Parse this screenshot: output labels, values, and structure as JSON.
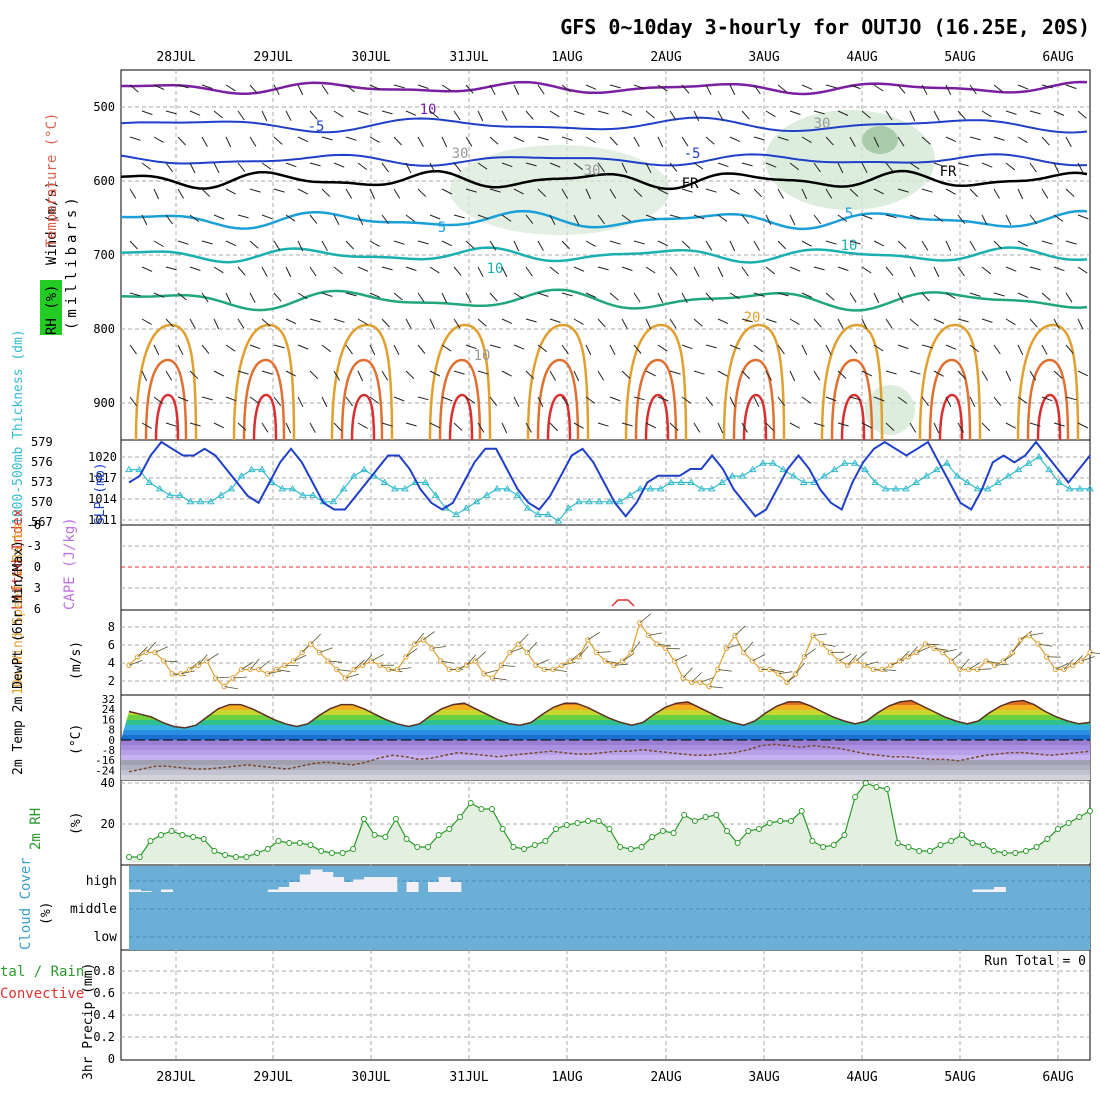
{
  "title": "GFS 0~10day 3-hourly for OUTJO (16.25E, 20S)",
  "dates": [
    "28JUL",
    "29JUL",
    "30JUL",
    "31JUL",
    "1AUG",
    "2AUG",
    "3AUG",
    "4AUG",
    "5AUG",
    "6AUG"
  ],
  "panels": {
    "upper": {
      "label_wind": "Wind (m/s)",
      "label_temp": "Temperature (°C)",
      "label_rh": "RH (%)",
      "label_mb": "(millibars)",
      "yticks": [
        "500",
        "600",
        "700",
        "800",
        "900"
      ],
      "contour_labels": [
        "10",
        "-5",
        "-5",
        "5",
        "5",
        "10",
        "10",
        "20",
        "FR",
        "FR",
        "10",
        "30",
        "30",
        "30"
      ]
    },
    "slp": {
      "label_thick": "1000-500mb Thickness (dm)",
      "label_slp": "SLP (mb)",
      "yticks_left": [
        "579",
        "576",
        "573",
        "570",
        "567"
      ],
      "yticks_right": [
        "1020",
        "1017",
        "1014",
        "1011"
      ]
    },
    "cape": {
      "label_li": "Lifted Index",
      "label_cape": "CAPE (J/kg)",
      "yticks": [
        "-6",
        "-3",
        "0",
        "3",
        "6"
      ]
    },
    "wind10": {
      "label": "10m Wind Speed & Barbs",
      "unit": "(m/s)",
      "yticks": [
        "8",
        "6",
        "4",
        "2"
      ]
    },
    "temp2m": {
      "label": "2m Temp 2m DewPt (6hr Min/Max)",
      "unit": "(°C)",
      "yticks": [
        "32",
        "24",
        "16",
        "8",
        "0",
        "-8",
        "-16",
        "-24"
      ]
    },
    "rh2m": {
      "label": "2m RH",
      "unit": "(%)",
      "yticks": [
        "40",
        "20"
      ]
    },
    "cloud": {
      "label": "Cloud Cover",
      "unit": "(%)",
      "levels": [
        "high",
        "middle",
        "low"
      ]
    },
    "precip": {
      "label_a": "tal / Rain",
      "label_b": "Convective",
      "label_c": "3hr Precip (mm)",
      "run_total": "Run Total = 0",
      "yticks": [
        "0.8",
        "0.6",
        "0.4",
        "0.2",
        "0"
      ]
    }
  },
  "colors": {
    "slp": "#1f3fc8",
    "thickness": "#33bbcc",
    "wind10": "#e0a030",
    "rh2m": "#2a9a2a",
    "cloud": "#6baed6",
    "li": "#e03030",
    "cape": "#c070e0"
  },
  "chart_data": [
    {
      "type": "line",
      "name": "SLP (mb)",
      "x_range": [
        "27JUL 12Z",
        "6AUG 06Z"
      ],
      "ylim": [
        1010,
        1022
      ],
      "values": [
        1016,
        1017,
        1020,
        1022,
        1021,
        1020,
        1020,
        1021,
        1020,
        1018,
        1016,
        1014,
        1013,
        1016,
        1019,
        1021,
        1019,
        1016,
        1013,
        1012,
        1012,
        1014,
        1016,
        1018,
        1020,
        1020,
        1018,
        1015,
        1013,
        1012,
        1013,
        1016,
        1019,
        1021,
        1021,
        1018,
        1015,
        1013,
        1012,
        1014,
        1017,
        1020,
        1021,
        1019,
        1016,
        1013,
        1011,
        1013,
        1016,
        1017,
        1017,
        1017,
        1018,
        1018,
        1020,
        1018,
        1015,
        1013,
        1011,
        1012,
        1015,
        1018,
        1020,
        1018,
        1015,
        1013,
        1012,
        1016,
        1019,
        1021,
        1022,
        1021,
        1020,
        1021,
        1022,
        1019,
        1016,
        1013,
        1012,
        1015,
        1019,
        1020,
        1019,
        1020,
        1022,
        1020,
        1018,
        1016,
        1018,
        1020
      ]
    },
    {
      "type": "line",
      "name": "1000-500mb Thickness (dm)",
      "ylim": [
        567,
        579
      ],
      "values": [
        575,
        575,
        573,
        572,
        571,
        571,
        570,
        570,
        570,
        571,
        572,
        574,
        575,
        575,
        573,
        572,
        572,
        571,
        571,
        570,
        570,
        572,
        574,
        575,
        574,
        573,
        572,
        572,
        573,
        573,
        571,
        569,
        568,
        569,
        570,
        571,
        572,
        572,
        571,
        569,
        568,
        568,
        567,
        569,
        570,
        570,
        570,
        570,
        570,
        571,
        572,
        572,
        572,
        573,
        573,
        573,
        572,
        572,
        573,
        574,
        574,
        575,
        576,
        576,
        575,
        574,
        573,
        573,
        574,
        575,
        576,
        576,
        575,
        573,
        572,
        572,
        572,
        573,
        574,
        575,
        576,
        574,
        573,
        572,
        572,
        573,
        574,
        575,
        576,
        577,
        575,
        573,
        572,
        572,
        572
      ]
    },
    {
      "type": "line",
      "name": "10m Wind Speed (m/s)",
      "ylim": [
        0,
        10
      ],
      "values": [
        3.5,
        4.5,
        5,
        5,
        4,
        2.5,
        2.5,
        3,
        3.5,
        4,
        2,
        1,
        2,
        3,
        3,
        3,
        2.5,
        3,
        3.5,
        4,
        5,
        6,
        5,
        4,
        3,
        2,
        3,
        3.5,
        4,
        3.5,
        3,
        3,
        4.5,
        6,
        6.5,
        5.5,
        4,
        3,
        3,
        3.5,
        4,
        2.5,
        2,
        3.5,
        5,
        6,
        5,
        3.5,
        3,
        3,
        3.5,
        4,
        4.5,
        6.5,
        5,
        4,
        3.5,
        4,
        5,
        8.5,
        7,
        6,
        5.5,
        4,
        2,
        1.5,
        1.5,
        1,
        3,
        5.5,
        7,
        5,
        4,
        3,
        3,
        2.5,
        1.5,
        2.5,
        4.5,
        7,
        6,
        5,
        4,
        3.5,
        4,
        3.5,
        3,
        3,
        3.5,
        4,
        4.5,
        5,
        6,
        5.5,
        5,
        4,
        3,
        3,
        3,
        4,
        3.5,
        4,
        5,
        6.5,
        7,
        6,
        4.5,
        3,
        3,
        3.5,
        4,
        5
      ]
    },
    {
      "type": "area",
      "name": "2m Temp (°C)",
      "ylim": [
        -28,
        34
      ],
      "values": [
        22,
        20,
        18,
        14,
        11,
        10,
        12,
        18,
        24,
        27,
        27,
        24,
        20,
        16,
        13,
        11,
        13,
        19,
        24,
        27,
        27,
        24,
        20,
        16,
        13,
        11,
        13,
        19,
        24,
        27,
        28,
        24,
        20,
        16,
        13,
        12,
        14,
        20,
        25,
        28,
        28,
        25,
        21,
        17,
        14,
        12,
        14,
        20,
        25,
        28,
        29,
        25,
        21,
        17,
        14,
        12,
        15,
        21,
        26,
        29,
        29,
        26,
        22,
        18,
        15,
        13,
        15,
        21,
        26,
        29,
        30,
        26,
        22,
        18,
        15,
        13,
        15,
        21,
        26,
        29,
        30,
        27,
        22,
        18,
        15,
        13,
        14
      ]
    },
    {
      "type": "line",
      "name": "2m DewPt (°C)",
      "ylim": [
        -28,
        34
      ],
      "values": [
        -22,
        -20,
        -18,
        -18,
        -19,
        -20,
        -20,
        -19,
        -18,
        -17,
        -18,
        -19,
        -20,
        -18,
        -16,
        -15,
        -16,
        -17,
        -15,
        -12,
        -10,
        -11,
        -13,
        -12,
        -10,
        -8,
        -9,
        -10,
        -11,
        -10,
        -9,
        -8,
        -7,
        -8,
        -9,
        -9,
        -8,
        -7,
        -7,
        -6,
        -7,
        -8,
        -9,
        -10,
        -10,
        -9,
        -8,
        -6,
        -3,
        -2,
        -3,
        -4,
        -3,
        -4,
        -5,
        -7,
        -9,
        -10,
        -11,
        -11,
        -12,
        -13,
        -13,
        -14,
        -12,
        -10,
        -9,
        -8,
        -8,
        -9,
        -10,
        -9,
        -8,
        -7
      ]
    },
    {
      "type": "area",
      "name": "2m RH (%)",
      "ylim": [
        0,
        40
      ],
      "values": [
        3,
        3,
        11,
        14,
        16,
        14,
        13,
        12,
        6,
        4,
        3,
        3,
        5,
        7,
        11,
        10,
        10,
        9,
        6,
        5,
        5,
        7,
        22,
        14,
        13,
        22,
        12,
        8,
        8,
        14,
        17,
        23,
        30,
        27,
        27,
        17,
        8,
        7,
        9,
        11,
        17,
        19,
        20,
        21,
        21,
        17,
        8,
        7,
        8,
        13,
        16,
        15,
        24,
        21,
        23,
        24,
        16,
        10,
        16,
        17,
        20,
        21,
        21,
        26,
        11,
        8,
        9,
        14,
        33,
        40,
        38,
        37,
        10,
        8,
        6,
        6,
        9,
        11,
        14,
        10,
        9,
        6,
        5,
        5,
        6,
        8,
        12,
        17,
        20,
        23,
        26
      ]
    },
    {
      "type": "bar",
      "name": "High Cloud Cover",
      "values": [
        5,
        2,
        0,
        5,
        0,
        0,
        0,
        0,
        0,
        0,
        0,
        0,
        0,
        5,
        10,
        20,
        35,
        45,
        40,
        30,
        20,
        25,
        30,
        30,
        30,
        0,
        20,
        0,
        20,
        30,
        20,
        0,
        0,
        0,
        0,
        0,
        0,
        0,
        0,
        0,
        0,
        0,
        0,
        0,
        0,
        0,
        0,
        0,
        0,
        0,
        0,
        0,
        0,
        0,
        0,
        0,
        0,
        0,
        0,
        0,
        0,
        0,
        0,
        0,
        0,
        0,
        0,
        0,
        0,
        0,
        0,
        0,
        0,
        0,
        0,
        0,
        0,
        0,
        0,
        5,
        5,
        10,
        0,
        0,
        0,
        0,
        0,
        0,
        0,
        0,
        0
      ]
    },
    {
      "type": "bar",
      "name": "3hr Precip (mm)",
      "ylim": [
        0,
        0.9
      ],
      "values": []
    }
  ]
}
